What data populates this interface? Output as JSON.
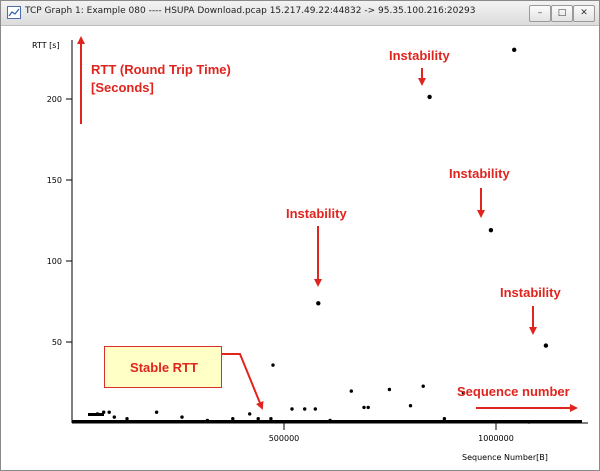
{
  "window": {
    "title": "TCP Graph 1: Example 080 ---- HSUPA Download.pcap 15.217.49.22:44832 -> 95.35.100.216:20293",
    "buttons": {
      "minimize": "–",
      "maximize": "□",
      "close": "✕"
    }
  },
  "chart_data": {
    "type": "scatter",
    "ylabel": "RTT [s]",
    "xlabel": "Sequence Number[B]",
    "x_ticks": [
      "500000",
      "1000000"
    ],
    "y_ticks": [
      "50",
      "100",
      "150",
      "200"
    ],
    "xlim": [
      0,
      1210000
    ],
    "ylim": [
      0,
      235
    ],
    "series": [
      {
        "values": [
          [
            60000,
            5
          ],
          [
            75000,
            6
          ],
          [
            88000,
            6
          ],
          [
            100000,
            3
          ],
          [
            130000,
            2
          ],
          [
            200000,
            6
          ],
          [
            260000,
            3
          ],
          [
            320000,
            1
          ],
          [
            380000,
            2
          ],
          [
            420000,
            5
          ],
          [
            440000,
            2
          ],
          [
            470000,
            2
          ],
          [
            475000,
            35
          ],
          [
            520000,
            8
          ],
          [
            550000,
            8
          ],
          [
            575000,
            8
          ],
          [
            582000,
            73
          ],
          [
            610000,
            1
          ],
          [
            660000,
            19
          ],
          [
            690000,
            9
          ],
          [
            700000,
            9
          ],
          [
            750000,
            20
          ],
          [
            800000,
            10
          ],
          [
            830000,
            22
          ],
          [
            845000,
            200
          ],
          [
            880000,
            2
          ],
          [
            925000,
            18
          ],
          [
            990000,
            118
          ],
          [
            1045000,
            229
          ],
          [
            1080000,
            0
          ],
          [
            1120000,
            47
          ]
        ]
      }
    ]
  },
  "annotations": {
    "rtt_label_line1": "RTT (Round Trip Time)",
    "rtt_label_line2": "[Seconds]",
    "instability": "Instability",
    "sequence_number": "Sequence number",
    "stable_rtt": "Stable RTT"
  }
}
